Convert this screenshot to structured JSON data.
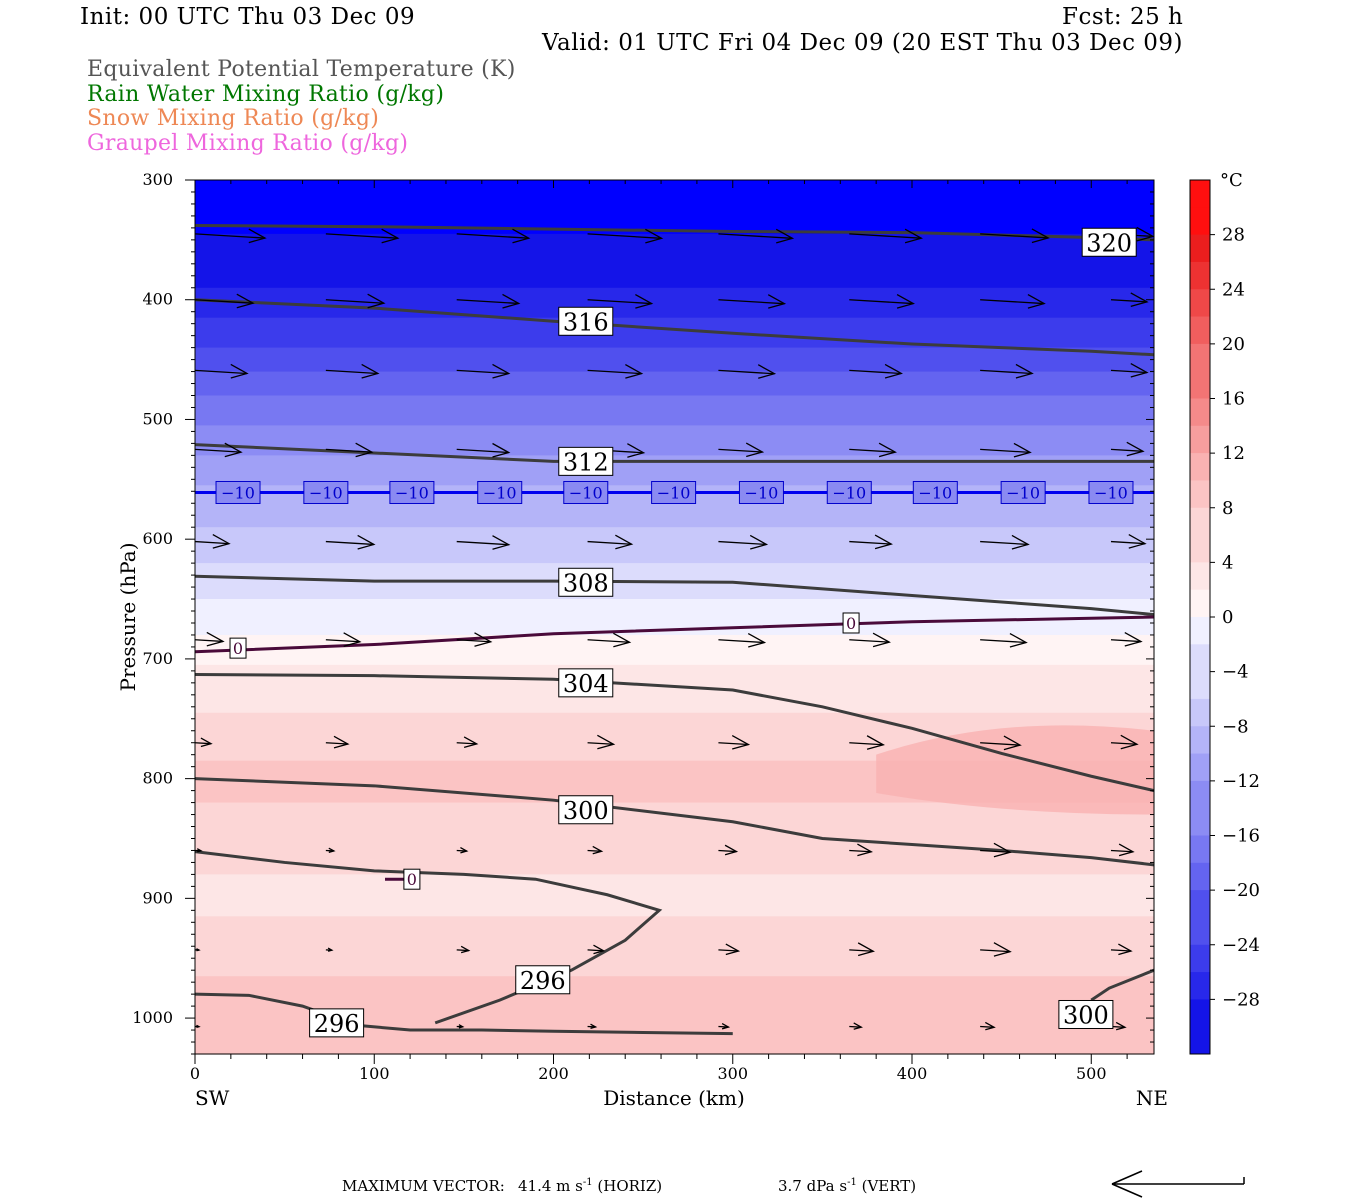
{
  "header": {
    "init": "Init: 00 UTC Thu 03 Dec 09",
    "fcst": "Fcst:   25 h",
    "valid": "Valid: 01 UTC Fri 04 Dec 09 (20 EST Thu 03 Dec 09)"
  },
  "variables": [
    {
      "label": "Equivalent Potential Temperature (K)",
      "color": "#555555"
    },
    {
      "label": "Rain Water Mixing Ratio (g/kg)",
      "color": "#007700"
    },
    {
      "label": "Snow Mixing Ratio (g/kg)",
      "color": "#ee8855"
    },
    {
      "label": "Graupel Mixing Ratio (g/kg)",
      "color": "#ee66dd"
    }
  ],
  "footer": {
    "max_vector_label": "MAXIMUM VECTOR:",
    "horiz_value": "41.4 m s",
    "horiz_exp": "-1",
    "horiz_tag": "(HORIZ)",
    "vert_value": "3.7 dPa s",
    "vert_exp": "-1",
    "vert_tag": "(VERT)"
  },
  "chart_data": {
    "type": "heatmap",
    "xlabel": "Distance (km)",
    "ylabel": "Pressure (hPa)",
    "xlim": [
      0,
      535
    ],
    "ylim": [
      1030,
      300
    ],
    "x_ticks": [
      0,
      100,
      200,
      300,
      400,
      500
    ],
    "y_ticks": [
      300,
      400,
      500,
      600,
      700,
      800,
      900,
      1000
    ],
    "x_end_labels": {
      "left": "SW",
      "right": "NE"
    },
    "colorbar": {
      "unit": "°C",
      "ticks": [
        28,
        24,
        20,
        16,
        12,
        8,
        4,
        0,
        -4,
        -8,
        -12,
        -16,
        -20,
        -24,
        -28
      ],
      "colors_warm": [
        "#fff4f4",
        "#fde6e6",
        "#fcd6d6",
        "#fbc4c4",
        "#f9b2b2",
        "#f79e9e",
        "#f58a8a",
        "#f37474",
        "#f15e5e",
        "#ef4848",
        "#ed3232",
        "#eb1e1e",
        "#ff0f0f"
      ],
      "colors_cold": [
        "#f0f0ff",
        "#dcdcfc",
        "#c8c8fa",
        "#b4b4f8",
        "#a0a0f6",
        "#8c8cf4",
        "#7878f2",
        "#6464f0",
        "#5050ee",
        "#3c3cec",
        "#2828ea",
        "#1414e8",
        "#0000ff"
      ]
    },
    "temperature_field": {
      "description_levels_hpa": [
        300,
        400,
        500,
        560,
        600,
        680,
        700,
        800,
        850,
        900,
        1000
      ],
      "temp_c_at_levels": [
        -34,
        -28,
        -16,
        -10,
        -7,
        0,
        2,
        8,
        6,
        4,
        9
      ]
    },
    "theta_e_contours": [
      {
        "label": "320",
        "x": [
          0,
          100,
          200,
          300,
          400,
          500,
          535
        ],
        "p": [
          338,
          339,
          341,
          343,
          344,
          348,
          350
        ]
      },
      {
        "label": "316",
        "x": [
          0,
          100,
          200,
          300,
          400,
          500,
          535
        ],
        "p": [
          400,
          407,
          418,
          428,
          437,
          443,
          446
        ]
      },
      {
        "label": "312",
        "x": [
          0,
          100,
          200,
          300,
          400,
          500,
          535
        ],
        "p": [
          521,
          528,
          535,
          535,
          535,
          535,
          535
        ]
      },
      {
        "label": "308",
        "x": [
          0,
          100,
          200,
          300,
          400,
          500,
          535
        ],
        "p": [
          631,
          635,
          635,
          636,
          647,
          658,
          663
        ]
      },
      {
        "label": "304",
        "x": [
          0,
          100,
          200,
          300,
          350,
          400,
          450,
          500,
          535
        ],
        "p": [
          713,
          714,
          717,
          726,
          740,
          758,
          779,
          798,
          810
        ]
      },
      {
        "label": "300",
        "x": [
          0,
          100,
          200,
          300,
          350,
          400,
          450,
          500,
          535
        ],
        "p": [
          800,
          806,
          818,
          836,
          850,
          855,
          860,
          866,
          872
        ]
      },
      {
        "label": "296",
        "x": [
          0,
          50,
          100,
          150,
          190,
          230,
          259,
          240,
          210,
          170,
          134
        ],
        "p": [
          861,
          870,
          877,
          880,
          884,
          897,
          910,
          935,
          960,
          985,
          1004
        ]
      },
      {
        "label": "296",
        "x": [
          0,
          30,
          60,
          90,
          120,
          160,
          200,
          250,
          300
        ],
        "p": [
          980,
          981,
          990,
          1006,
          1010,
          1010,
          1011,
          1012,
          1013
        ]
      },
      {
        "label": "300",
        "x": [
          500,
          510,
          535
        ],
        "p": [
          985,
          975,
          960
        ]
      }
    ],
    "isotherm_contours": [
      {
        "label": "-10",
        "x": [
          0,
          535
        ],
        "p": [
          561,
          561
        ]
      },
      {
        "label": "0",
        "x": [
          0,
          100,
          200,
          300,
          400,
          500,
          535
        ],
        "p": [
          694,
          688,
          679,
          674,
          669,
          666,
          665
        ]
      },
      {
        "label": "0",
        "x": [
          106,
          122
        ],
        "p": [
          884,
          884
        ]
      }
    ],
    "labels_on_contours": [
      {
        "text": "320",
        "x": 510,
        "p": 352
      },
      {
        "text": "316",
        "x": 218,
        "p": 418
      },
      {
        "text": "312",
        "x": 218,
        "p": 535
      },
      {
        "text": "308",
        "x": 218,
        "p": 636
      },
      {
        "text": "304",
        "x": 218,
        "p": 720
      },
      {
        "text": "300",
        "x": 218,
        "p": 826
      },
      {
        "text": "296",
        "x": 194,
        "p": 968
      },
      {
        "text": "296",
        "x": 79,
        "p": 1004
      },
      {
        "text": "300",
        "x": 497,
        "p": 997
      },
      {
        "text": "0",
        "x": 24,
        "p": 691
      },
      {
        "text": "0",
        "x": 366,
        "p": 670
      },
      {
        "text": "0",
        "x": 121,
        "p": 884
      }
    ],
    "minus10_label_x": [
      24,
      73,
      121,
      170,
      218,
      267,
      316,
      365,
      413,
      462,
      511
    ],
    "vector_rows": [
      {
        "p": 345,
        "x": [
          0,
          73,
          146,
          219,
          292,
          365,
          438,
          511
        ],
        "len": [
          70,
          72,
          72,
          74,
          74,
          72,
          68,
          42
        ]
      },
      {
        "p": 400,
        "x": [
          0,
          73,
          146,
          219,
          292,
          365,
          438,
          511
        ],
        "len": [
          58,
          58,
          62,
          64,
          66,
          64,
          64,
          36
        ]
      },
      {
        "p": 459,
        "x": [
          0,
          73,
          146,
          219,
          292,
          365,
          438,
          511
        ],
        "len": [
          52,
          52,
          52,
          54,
          56,
          52,
          52,
          36
        ]
      },
      {
        "p": 525,
        "x": [
          0,
          73,
          146,
          219,
          292,
          365,
          438,
          511
        ],
        "len": [
          46,
          46,
          52,
          56,
          44,
          46,
          50,
          32
        ]
      },
      {
        "p": 602,
        "x": [
          0,
          73,
          146,
          219,
          292,
          365,
          438,
          511
        ],
        "len": [
          34,
          48,
          52,
          44,
          48,
          42,
          48,
          34
        ]
      },
      {
        "p": 684,
        "x": [
          0,
          73,
          146,
          219,
          292,
          365,
          438,
          511
        ],
        "len": [
          28,
          34,
          34,
          42,
          46,
          40,
          46,
          30
        ]
      },
      {
        "p": 770,
        "x": [
          0,
          73,
          146,
          219,
          292,
          365,
          438,
          511
        ],
        "len": [
          16,
          22,
          20,
          26,
          30,
          34,
          40,
          26
        ]
      },
      {
        "p": 860,
        "x": [
          0,
          73,
          146,
          219,
          292,
          365,
          438,
          511
        ],
        "len": [
          6,
          8,
          10,
          14,
          18,
          22,
          30,
          22
        ]
      },
      {
        "p": 943,
        "x": [
          0,
          73,
          146,
          219,
          292,
          365,
          438,
          511
        ],
        "len": [
          4,
          6,
          12,
          16,
          20,
          24,
          30,
          20
        ]
      },
      {
        "p": 1007,
        "x": [
          0,
          73,
          146,
          219,
          292,
          365,
          438,
          511
        ],
        "len": [
          4,
          4,
          6,
          8,
          10,
          12,
          14,
          14
        ]
      }
    ]
  }
}
